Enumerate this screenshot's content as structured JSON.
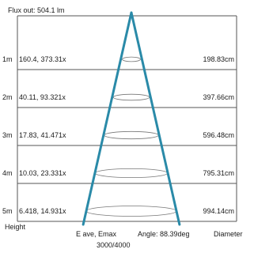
{
  "chart_data": {
    "type": "table",
    "title": "Flux out: 504.1 lm",
    "y_axis_label": "Height",
    "unit_labels": {
      "values": "E ave, Emax",
      "angle": "Angle: 88.39deg",
      "diameter": "Diameter"
    },
    "footer": "3000/4000",
    "beam_angle_deg": 88.39,
    "flux_lm": 504.1,
    "rows": [
      {
        "height_label": "1m",
        "height_m": 1,
        "values_label": "160.4, 373.31x",
        "e_ave_lx": 160.4,
        "e_max_lx": 373.3,
        "diameter_label": "198.83cm",
        "diameter_cm": 198.83
      },
      {
        "height_label": "2m",
        "height_m": 2,
        "values_label": "40.11, 93.321x",
        "e_ave_lx": 40.11,
        "e_max_lx": 93.32,
        "diameter_label": "397.66cm",
        "diameter_cm": 397.66
      },
      {
        "height_label": "3m",
        "height_m": 3,
        "values_label": "17.83, 41.471x",
        "e_ave_lx": 17.83,
        "e_max_lx": 41.47,
        "diameter_label": "596.48cm",
        "diameter_cm": 596.48
      },
      {
        "height_label": "4m",
        "height_m": 4,
        "values_label": "10.03, 23.331x",
        "e_ave_lx": 10.03,
        "e_max_lx": 23.33,
        "diameter_label": "795.31cm",
        "diameter_cm": 795.31
      },
      {
        "height_label": "5m",
        "height_m": 5,
        "values_label": "6.418, 14.931x",
        "e_ave_lx": 6.418,
        "e_max_lx": 14.93,
        "diameter_label": "994.14cm",
        "diameter_cm": 994.14
      }
    ],
    "colors": {
      "beam": "#2a8aa8",
      "grid": "#555555",
      "text": "#1a1a1a"
    }
  }
}
